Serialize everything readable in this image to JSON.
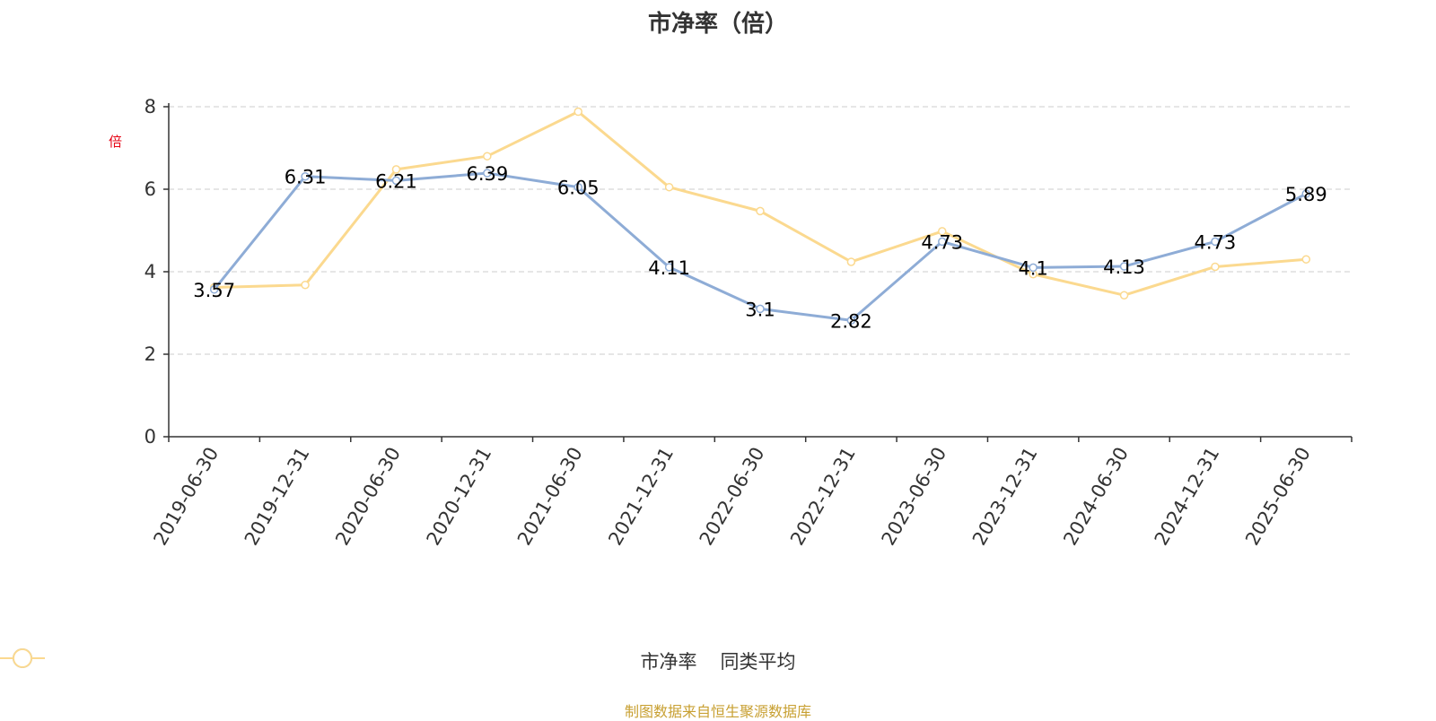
{
  "colors": {
    "series1": "#8eacd6",
    "series2": "#fbd98f",
    "axis": "#333333",
    "grid": "#cccccc",
    "ylabel": "#e60012",
    "footer": "#c8a032"
  },
  "chart_data": {
    "type": "line",
    "title": "市净率（倍）",
    "ylabel": "倍",
    "xlabel": "",
    "ylim": [
      0,
      8
    ],
    "yticks": [
      0,
      2,
      4,
      6,
      8
    ],
    "grid": true,
    "legend_position": "bottom-center",
    "x": [
      "2019-06-30",
      "2019-12-31",
      "2020-06-30",
      "2020-12-31",
      "2021-06-30",
      "2021-12-31",
      "2022-06-30",
      "2022-12-31",
      "2023-06-30",
      "2023-12-31",
      "2024-06-30",
      "2024-12-31",
      "2025-06-30"
    ],
    "series": [
      {
        "name": "市净率",
        "values": [
          3.57,
          6.31,
          6.21,
          6.39,
          6.05,
          4.11,
          3.1,
          2.82,
          4.73,
          4.1,
          4.13,
          4.73,
          5.89
        ],
        "labels": [
          "3.57",
          "6.31",
          "6.21",
          "6.39",
          "6.05",
          "4.11",
          "3.1",
          "2.82",
          "4.73",
          "4.1",
          "4.13",
          "4.73",
          "5.89"
        ]
      },
      {
        "name": "同类平均",
        "values": [
          3.62,
          3.68,
          6.48,
          6.8,
          7.88,
          6.05,
          5.47,
          4.24,
          4.98,
          3.94,
          3.43,
          4.12,
          4.3
        ]
      }
    ]
  },
  "footer": "制图数据来自恒生聚源数据库"
}
